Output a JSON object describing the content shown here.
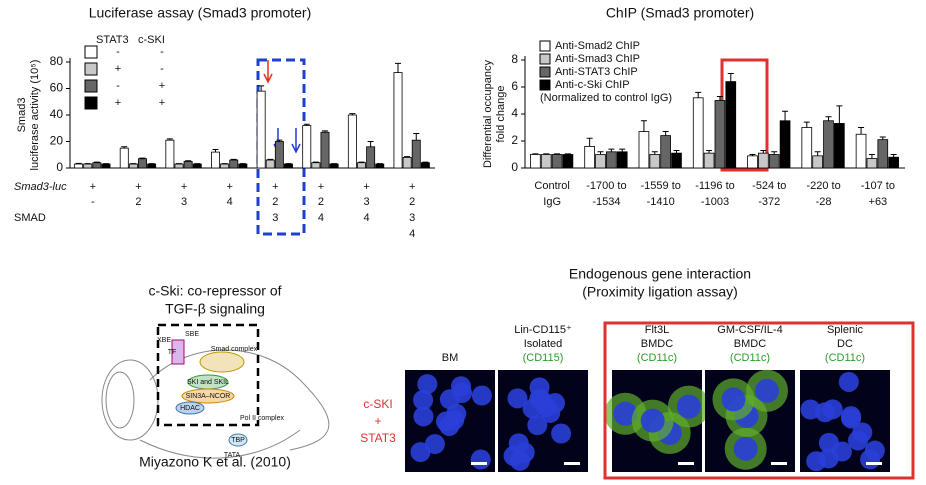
{
  "chart_data": [
    {
      "type": "bar",
      "title": "Luciferase assay (Smad3 promoter)",
      "ylabel": [
        "Smad3",
        "luciferase activity (10⁵)"
      ],
      "ylim": [
        0,
        80
      ],
      "yticks": [
        0,
        20,
        40,
        60,
        80
      ],
      "row_labels": [
        "Smad3-luc",
        "SMAD"
      ],
      "luc_row": [
        "+",
        "+",
        "+",
        "+",
        "+",
        "+",
        "+",
        "+"
      ],
      "categories": [
        [
          "-"
        ],
        [
          "2"
        ],
        [
          "3"
        ],
        [
          "4"
        ],
        [
          "2",
          "3"
        ],
        [
          "2",
          "4"
        ],
        [
          "3",
          "4"
        ],
        [
          "2",
          "3",
          "4"
        ]
      ],
      "legend": {
        "headers": [
          "STAT3",
          "c-SKI"
        ],
        "rows": [
          [
            "-",
            "-"
          ],
          [
            "+",
            "-"
          ],
          [
            "-",
            "+"
          ],
          [
            "+",
            "+"
          ]
        ]
      },
      "series": [
        {
          "color": "#ffffff",
          "values": [
            3,
            15,
            21,
            12,
            58,
            32,
            40,
            72
          ],
          "errors": [
            0.5,
            1,
            1,
            2,
            4,
            1,
            1,
            7
          ]
        },
        {
          "color": "#c8c8c8",
          "values": [
            3,
            3,
            3,
            3,
            6,
            4,
            4,
            8
          ],
          "errors": [
            0.3,
            0.3,
            0.3,
            0.3,
            0.5,
            0.4,
            0.4,
            0.6
          ]
        },
        {
          "color": "#666666",
          "values": [
            4,
            7,
            5,
            6,
            20,
            27,
            16,
            21
          ],
          "errors": [
            0.4,
            0.5,
            0.5,
            0.5,
            1,
            1,
            4,
            5
          ]
        },
        {
          "color": "#000000",
          "values": [
            3,
            3,
            3,
            3,
            3,
            3,
            3,
            4
          ],
          "errors": [
            0.3,
            0.3,
            0.3,
            0.3,
            0.3,
            0.3,
            0.3,
            0.4
          ]
        }
      ]
    },
    {
      "type": "bar",
      "title": "ChIP (Smad3 promoter)",
      "ylabel": [
        "Differential occupancy",
        "fold change"
      ],
      "ylim": [
        0,
        8
      ],
      "yticks": [
        0,
        2,
        4,
        6,
        8
      ],
      "note": "(Normalized to control IgG)",
      "categories": [
        [
          "Control",
          "IgG"
        ],
        [
          "-1700 to",
          "-1534"
        ],
        [
          "-1559 to",
          "-1410"
        ],
        [
          "-1196 to",
          "-1003"
        ],
        [
          "-524 to",
          "-372"
        ],
        [
          "-220 to",
          "-28"
        ],
        [
          "-107 to",
          "+63"
        ]
      ],
      "series": [
        {
          "name": "Anti-Smad2 ChIP",
          "color": "#ffffff",
          "values": [
            1,
            1.6,
            2.7,
            5.2,
            0.9,
            3.0,
            2.5
          ],
          "errors": [
            0.05,
            0.6,
            0.8,
            0.4,
            0.1,
            0.4,
            0.5
          ]
        },
        {
          "name": "Anti-Smad3 ChIP",
          "color": "#c8c8c8",
          "values": [
            1,
            1.0,
            1.0,
            1.1,
            1.1,
            0.9,
            0.7
          ],
          "errors": [
            0.05,
            0.2,
            0.2,
            0.2,
            0.2,
            0.3,
            0.3
          ]
        },
        {
          "name": "Anti-STAT3 ChIP",
          "color": "#666666",
          "values": [
            1,
            1.2,
            2.4,
            5.0,
            1.0,
            3.5,
            2.1
          ],
          "errors": [
            0.05,
            0.2,
            0.3,
            0.3,
            0.2,
            0.3,
            0.2
          ]
        },
        {
          "name": "Anti-c-Ski ChIP",
          "color": "#000000",
          "values": [
            1,
            1.2,
            1.1,
            6.4,
            3.5,
            3.3,
            0.8
          ],
          "errors": [
            0.05,
            0.2,
            0.2,
            0.6,
            0.7,
            1.3,
            0.2
          ]
        }
      ]
    }
  ],
  "diagram": {
    "title": [
      "c-Ski: co-repressor of",
      "TGF-β signaling"
    ],
    "labels": [
      "XBE",
      "SBE",
      "TF",
      "Smad complex",
      "SKI and SKIL",
      "SIN3A–NCOR",
      "HDAC",
      "Pol II complex",
      "TBP",
      "TATA"
    ],
    "citation": "Miyazono K et al. (2010)"
  },
  "microscopy": {
    "title": "Endogenous gene interaction",
    "subtitle": "(Proximity ligation assay)",
    "row_label": [
      "c-SKI",
      "+",
      "STAT3"
    ],
    "panels": [
      {
        "lines": [
          "BM"
        ]
      },
      {
        "lines": [
          "Lin-CD115⁺",
          "Isolated"
        ],
        "marker": "(CD115)"
      },
      {
        "lines": [
          "Flt3L",
          "BMDC"
        ],
        "marker": "(CD11c)"
      },
      {
        "lines": [
          "GM-CSF/IL-4",
          "BMDC"
        ],
        "marker": "(CD11c)"
      },
      {
        "lines": [
          "Splenic",
          "DC"
        ],
        "marker": "(CD11c)"
      }
    ]
  }
}
